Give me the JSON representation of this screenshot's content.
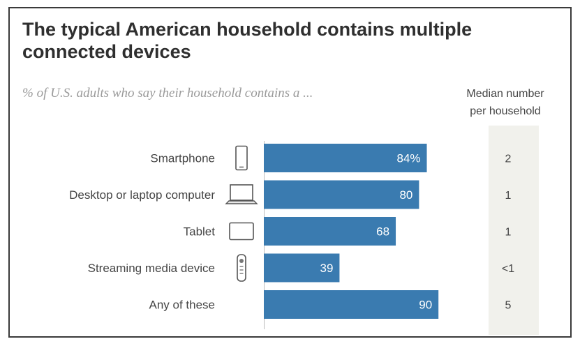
{
  "chart_data": {
    "type": "bar",
    "orientation": "horizontal",
    "title": "The typical American household contains multiple connected devices",
    "subtitle": "% of U.S. adults who say their household contains a ...",
    "categories": [
      "Smartphone",
      "Desktop or laptop computer",
      "Tablet",
      "Streaming media device",
      "Any of these"
    ],
    "values": [
      84,
      80,
      68,
      39,
      90
    ],
    "value_labels": [
      "84%",
      "80",
      "68",
      "39",
      "90"
    ],
    "icons": [
      "smartphone-icon",
      "laptop-icon",
      "tablet-icon",
      "streaming-remote-icon",
      ""
    ],
    "xlim": [
      0,
      100
    ],
    "bar_color": "#3a7bb0",
    "median_header": [
      "Median number",
      "per household"
    ],
    "median_values": [
      "2",
      "1",
      "1",
      "<1",
      "5"
    ]
  }
}
